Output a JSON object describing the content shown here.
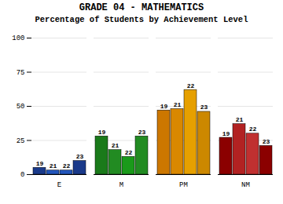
{
  "chart_data": {
    "type": "bar",
    "title": "GRADE 04 - MATHEMATICS",
    "subtitle": "Percentage of Students by Achievement Level",
    "categories": [
      "E",
      "M",
      "PM",
      "NM"
    ],
    "series": [
      {
        "name": "19",
        "values": [
          5,
          28,
          47,
          27
        ],
        "colors": [
          "#1a3a8a",
          "#1a7a1a",
          "#cc7700",
          "#8b0000"
        ]
      },
      {
        "name": "21",
        "values": [
          3,
          18,
          48,
          37
        ],
        "colors": [
          "#2255bb",
          "#228b22",
          "#d98800",
          "#b22222"
        ]
      },
      {
        "name": "22",
        "values": [
          3,
          13,
          62,
          30
        ],
        "colors": [
          "#2255bb",
          "#1a9a1a",
          "#e6a000",
          "#c03030"
        ]
      },
      {
        "name": "23",
        "values": [
          10,
          28,
          46,
          21
        ],
        "colors": [
          "#1a3a8a",
          "#228b22",
          "#cc8800",
          "#8b0000"
        ]
      }
    ],
    "ylim": [
      0,
      100
    ],
    "yticks": [
      0,
      25,
      50,
      75,
      100
    ],
    "grid": true
  }
}
